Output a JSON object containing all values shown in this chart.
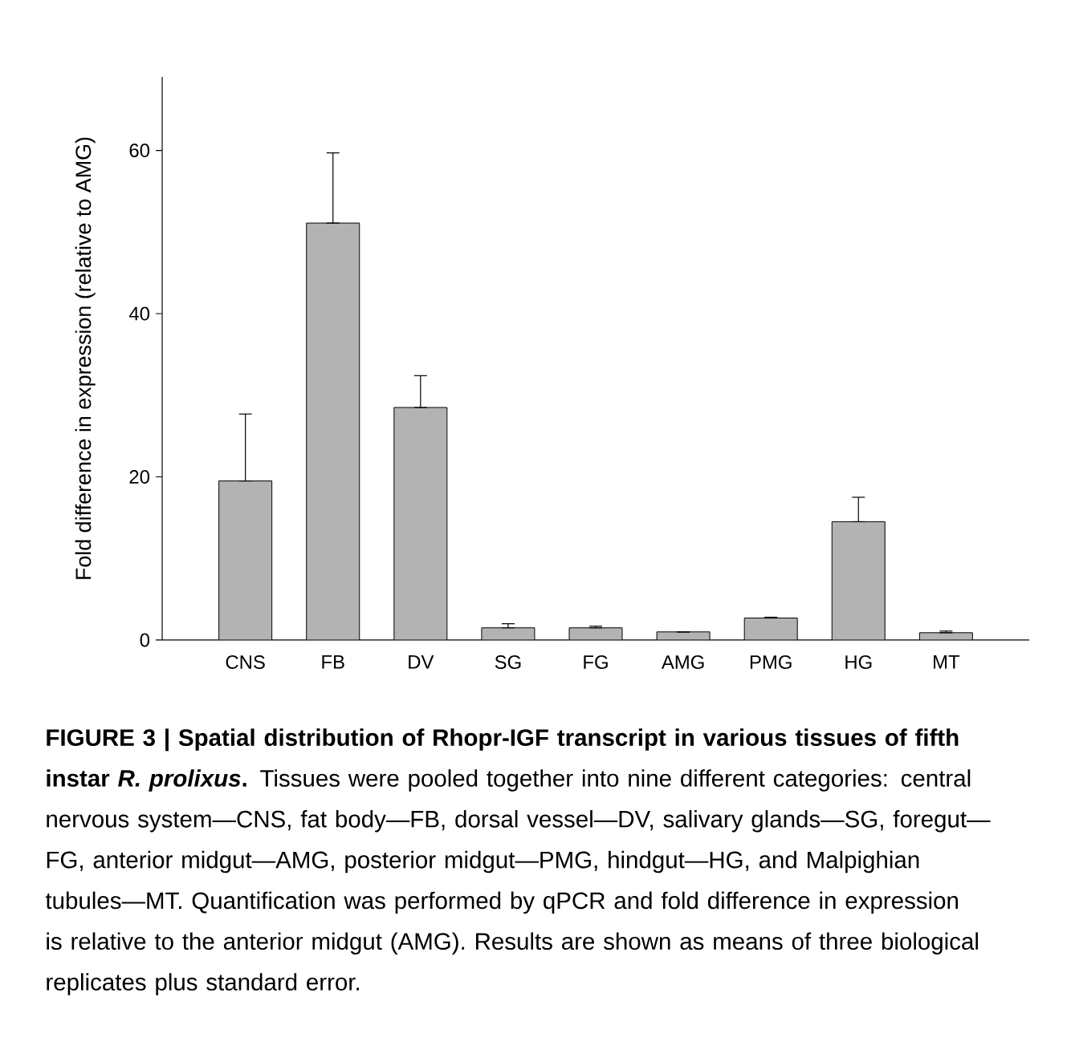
{
  "chart_data": {
    "type": "bar",
    "title": "FIGURE 3 | Spatial distribution of Rhopr-IGF transcript in various tissues of fifth instar *R. prolixus*.",
    "annotations": [
      "Tissues were pooled together into nine different categories: central nervous system—CNS, fat body—FB, dorsal vessel—DV, salivary glands—SG, foregut—FG, anterior midgut—AMG, posterior midgut—PMG, hindgut—HG, and Malpighian tubules—MT. Quantification was performed by qPCR and fold difference in expression is relative to the anterior midgut (AMG). Results are shown as means of three biological replicates plus standard error."
    ],
    "ylabel": "Fold difference in expression (relative to AMG)",
    "categories": [
      "CNS",
      "FB",
      "DV",
      "SG",
      "FG",
      "AMG",
      "PMG",
      "HG",
      "MT"
    ],
    "values": [
      19.5,
      51.1,
      28.5,
      1.5,
      1.5,
      1.0,
      2.7,
      14.5,
      0.9
    ],
    "errors": [
      [
        19.5,
        27.7
      ],
      [
        51.1,
        59.7
      ],
      [
        28.5,
        32.4
      ],
      [
        1.5,
        2.0
      ],
      [
        1.5,
        1.7
      ],
      null,
      [
        2.7,
        2.8
      ],
      [
        14.5,
        17.5
      ],
      [
        0.9,
        1.1
      ]
    ],
    "color": "#b3b3b3",
    "ylim": [
      0,
      69
    ],
    "yticks": [
      0,
      20,
      40,
      60
    ],
    "grid": false
  }
}
